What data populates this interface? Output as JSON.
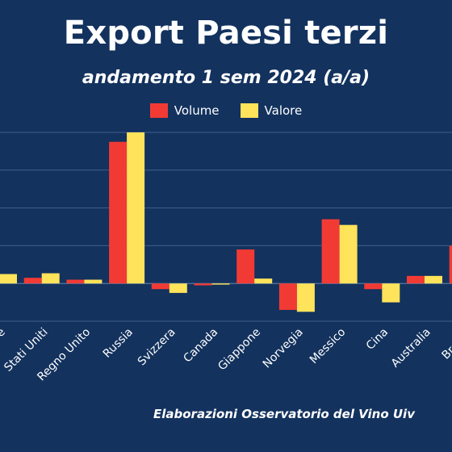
{
  "chart_data": {
    "type": "bar",
    "title": "Export Paesi terzi",
    "subtitle": "andamento 1 sem 2024 (a/a)",
    "xlabel": "",
    "ylabel": "",
    "categories": [
      "Totale",
      "Stati Uniti",
      "Regno Unito",
      "Russia",
      "Svizzera",
      "Canada",
      "Giappone",
      "Norvegia",
      "Messico",
      "Cina",
      "Australia",
      "Brasile"
    ],
    "series": [
      {
        "name": "Volume",
        "color": "#f23a35",
        "values": [
          1,
          1.5,
          1,
          37.5,
          -1.5,
          -0.5,
          9,
          -7,
          17,
          -1.5,
          2,
          10
        ]
      },
      {
        "name": "Valore",
        "color": "#ffe35a",
        "values": [
          2.5,
          2.7,
          1,
          40,
          -2.5,
          -0.3,
          1.3,
          -7.5,
          15.5,
          -5,
          2,
          0
        ]
      }
    ],
    "ylim": [
      -10,
      40
    ],
    "grid": true,
    "legend_position": "top-center",
    "footer": "Elaborazioni Osservatorio del Vino Uiv"
  }
}
